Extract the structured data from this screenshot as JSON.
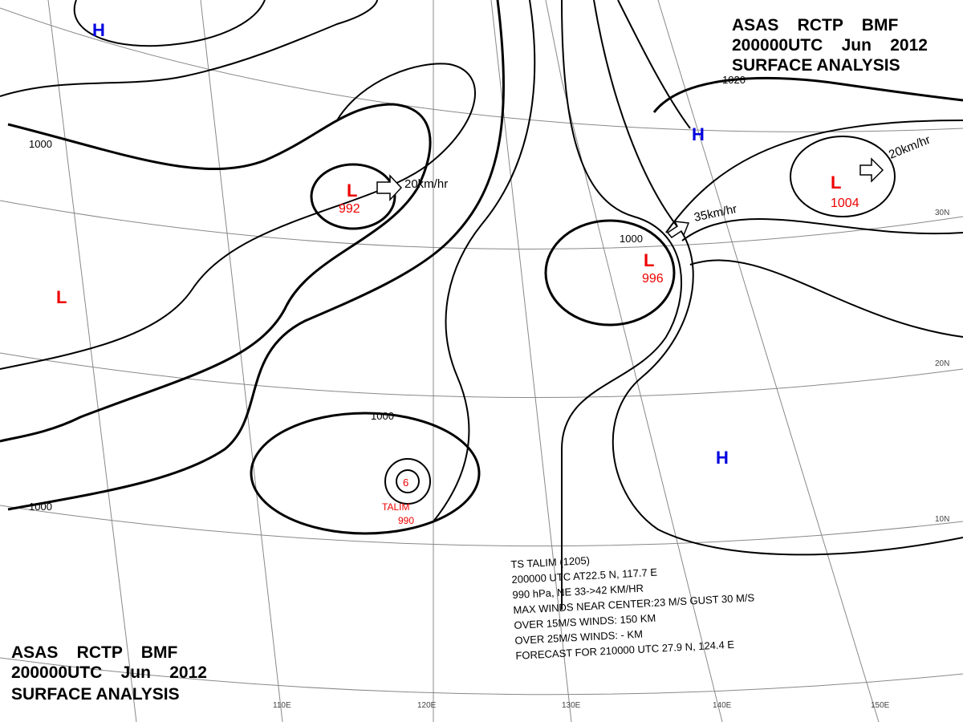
{
  "header_top": [
    "ASAS    RCTP    BMF",
    "200000UTC    Jun    2012",
    "SURFACE ANALYSIS"
  ],
  "header_bottom": [
    "ASAS    RCTP    BMF",
    "200000UTC    Jun    2012",
    "SURFACE ANALYSIS"
  ],
  "highs": [
    "H",
    "H",
    "H"
  ],
  "lows": [
    {
      "symbol": "L"
    },
    {
      "symbol": "L",
      "pressure": "992"
    },
    {
      "symbol": "L",
      "pressure": "996"
    },
    {
      "symbol": "L",
      "pressure": "1004"
    }
  ],
  "isobar_labels": [
    "1000",
    "1020",
    "1000",
    "1000",
    "1000"
  ],
  "motion": [
    "20km/hr",
    "20km/hr",
    "35km/hr"
  ],
  "lon_labels": [
    "110E",
    "120E",
    "130E",
    "140E",
    "150E"
  ],
  "lat_labels": [
    "30N",
    "20N",
    "10N"
  ],
  "storm": {
    "name": "TALIM",
    "pressure": "990",
    "info": [
      "TS TALIM (1205)",
      "200000 UTC AT22.5 N, 117.7 E",
      "990 hPa, NE 33->42 KM/HR",
      "MAX WINDS NEAR CENTER:23 M/S GUST 30 M/S",
      "OVER 15M/S WINDS: 150 KM",
      "OVER 25M/S WINDS: - KM",
      "FORECAST FOR 210000 UTC 27.9 N, 124.4 E"
    ]
  }
}
